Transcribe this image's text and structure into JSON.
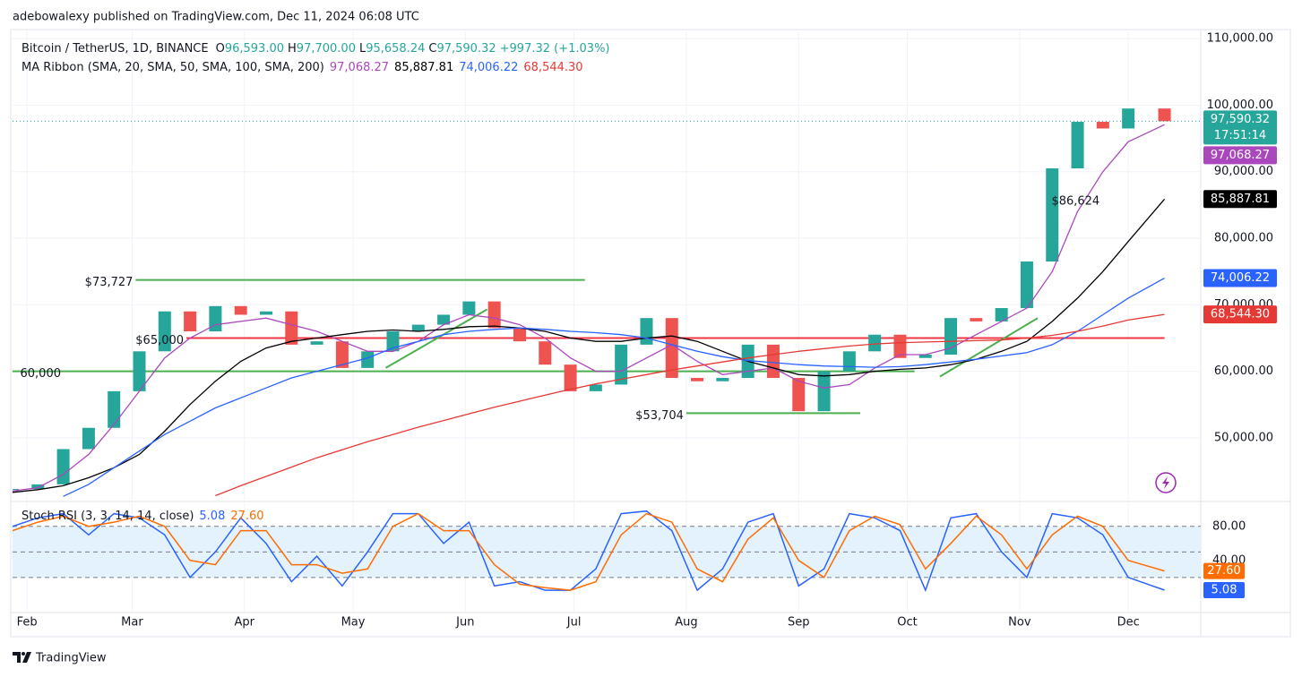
{
  "header": {
    "byline": "adebowalexy published on TradingView.com, Dec 11, 2024 06:08 UTC",
    "footer": "TradingView"
  },
  "chart_data": [
    {
      "type": "candlestick",
      "title": "Bitcoin / TetherUS, 1D, BINANCE",
      "ohlc": [
        {
          "key": "O",
          "value": 96593,
          "label": "96,593.00"
        },
        {
          "key": "H",
          "value": 97700,
          "label": "97,700.00"
        },
        {
          "key": "L",
          "value": 95658.24,
          "label": "95,658.24"
        },
        {
          "key": "C",
          "value": 97590.32,
          "label": "97,590.32"
        }
      ],
      "change": {
        "value": 997.32,
        "label": "+997.32 (+1.03%)"
      },
      "ribbon_title": "MA Ribbon (SMA, 20, SMA, 50, SMA, 100, SMA, 200)",
      "countdown": "17:51:14",
      "x": [
        "2024-01-28",
        "2024-02-04",
        "2024-02-11",
        "2024-02-18",
        "2024-02-25",
        "2024-03-03",
        "2024-03-10",
        "2024-03-17",
        "2024-03-24",
        "2024-03-31",
        "2024-04-07",
        "2024-04-14",
        "2024-04-21",
        "2024-04-28",
        "2024-05-05",
        "2024-05-12",
        "2024-05-19",
        "2024-05-26",
        "2024-06-02",
        "2024-06-09",
        "2024-06-16",
        "2024-06-23",
        "2024-06-30",
        "2024-07-07",
        "2024-07-14",
        "2024-07-21",
        "2024-07-28",
        "2024-08-04",
        "2024-08-11",
        "2024-08-18",
        "2024-08-25",
        "2024-09-01",
        "2024-09-08",
        "2024-09-15",
        "2024-09-22",
        "2024-09-29",
        "2024-10-06",
        "2024-10-13",
        "2024-10-20",
        "2024-10-27",
        "2024-11-03",
        "2024-11-10",
        "2024-11-17",
        "2024-11-24",
        "2024-12-01",
        "2024-12-11"
      ],
      "series": [
        {
          "style": "candles",
          "up_color": "#26a69a",
          "down_color": "#ef5350",
          "color": "#26a69a",
          "last": {
            "value": 97590.32,
            "label": "97,590.32"
          },
          "values": [
            42300,
            43000,
            48300,
            51500,
            57000,
            63000,
            69000,
            66000,
            69800,
            68500,
            69000,
            64000,
            64500,
            60500,
            63000,
            66000,
            67000,
            68500,
            70500,
            66500,
            64500,
            61000,
            57000,
            58000,
            64000,
            68000,
            59000,
            58500,
            59000,
            64000,
            59000,
            54000,
            60000,
            63000,
            65500,
            62000,
            62500,
            68000,
            67500,
            69500,
            76500,
            90500,
            97500,
            96500,
            99500,
            97590.32
          ]
        },
        {
          "style": "line",
          "color": "#ab47bc",
          "last": {
            "value": 97068.27,
            "label": "97,068.27"
          },
          "values": [
            42000,
            42500,
            44500,
            47500,
            52000,
            57000,
            62000,
            65000,
            67000,
            67500,
            68000,
            67000,
            66000,
            64500,
            63000,
            63000,
            64500,
            67000,
            68500,
            68000,
            67000,
            65000,
            62000,
            60000,
            60000,
            62000,
            64000,
            61500,
            59500,
            60000,
            60500,
            58500,
            57500,
            58000,
            60500,
            62500,
            62500,
            63500,
            65500,
            67500,
            69500,
            75000,
            84000,
            90000,
            94500,
            97068.27
          ]
        },
        {
          "style": "line",
          "color": "#000000",
          "last": {
            "value": 85887.81,
            "label": "85,887.81"
          },
          "values": [
            41800,
            42200,
            42800,
            44000,
            45500,
            47500,
            51000,
            55000,
            58500,
            61500,
            63500,
            64500,
            65000,
            65500,
            66000,
            66200,
            66000,
            66300,
            66700,
            66800,
            66500,
            66000,
            65000,
            64500,
            64500,
            65000,
            65300,
            64500,
            63000,
            61500,
            60500,
            59500,
            59300,
            59500,
            60000,
            60300,
            60500,
            61000,
            61800,
            63000,
            64500,
            67500,
            71000,
            75000,
            79500,
            85887.81
          ]
        },
        {
          "style": "line",
          "color": "#2962ff",
          "last": {
            "value": 74006.22,
            "label": "74,006.22"
          },
          "values": [
            null,
            null,
            41200,
            43000,
            45500,
            48000,
            50500,
            52500,
            54500,
            56000,
            57500,
            59000,
            60000,
            61000,
            62000,
            63500,
            64500,
            65500,
            66000,
            66300,
            66500,
            66300,
            66000,
            65800,
            65500,
            65000,
            64000,
            63000,
            62200,
            61600,
            61300,
            61000,
            60800,
            60700,
            60600,
            60700,
            61000,
            61400,
            61800,
            62300,
            62800,
            64000,
            66000,
            68500,
            71000,
            74006.22
          ]
        },
        {
          "style": "line",
          "color": "#e53935",
          "last": {
            "value": 68544.3,
            "label": "68,544.30"
          },
          "values": [
            null,
            null,
            null,
            null,
            null,
            null,
            null,
            null,
            41300,
            42800,
            44200,
            45600,
            47000,
            48200,
            49400,
            50500,
            51600,
            52600,
            53600,
            54600,
            55500,
            56400,
            57300,
            58100,
            58800,
            59500,
            60200,
            60800,
            61400,
            62000,
            62500,
            63000,
            63400,
            63800,
            64100,
            64300,
            64400,
            64500,
            64600,
            64700,
            65000,
            65400,
            66000,
            66800,
            67700,
            68544.3
          ]
        }
      ],
      "annotations": [
        {
          "label": "$73,727",
          "value": 73727,
          "color": "#4caf50",
          "x": [
            "2024-03-02",
            "2024-07-04"
          ]
        },
        {
          "label": "$65,000",
          "value": 65000,
          "color": "#f23645",
          "x": [
            "2024-03-16",
            "2024-12-11"
          ]
        },
        {
          "label": "60,000",
          "value": 60000,
          "color": "#4caf50",
          "x": [
            "2024-01-28",
            "2024-10-03"
          ]
        },
        {
          "label": "$53,704",
          "value": 53704,
          "color": "#4caf50",
          "x": [
            "2024-08-01",
            "2024-09-18"
          ]
        },
        {
          "label": "$86,624",
          "value": 86624,
          "color": "#000000",
          "x": [
            "2024-11-12"
          ]
        }
      ],
      "trendlines": [
        {
          "color": "#4caf50",
          "x": [
            "2024-05-10",
            "2024-06-07"
          ],
          "values": [
            60500,
            69300
          ]
        },
        {
          "color": "#4caf50",
          "x": [
            "2024-10-10",
            "2024-11-06"
          ],
          "values": [
            59200,
            68000
          ]
        }
      ],
      "xlim": [
        "2024-01-28",
        "2024-12-21"
      ],
      "xticks": [
        {
          "value": "2024-02-01",
          "label": "Feb"
        },
        {
          "value": "2024-03-01",
          "label": "Mar"
        },
        {
          "value": "2024-04-01",
          "label": "Apr"
        },
        {
          "value": "2024-05-01",
          "label": "May"
        },
        {
          "value": "2024-06-01",
          "label": "Jun"
        },
        {
          "value": "2024-07-01",
          "label": "Jul"
        },
        {
          "value": "2024-08-01",
          "label": "Aug"
        },
        {
          "value": "2024-09-01",
          "label": "Sep"
        },
        {
          "value": "2024-10-01",
          "label": "Oct"
        },
        {
          "value": "2024-11-01",
          "label": "Nov"
        },
        {
          "value": "2024-12-01",
          "label": "Dec"
        }
      ],
      "ylim": [
        41100,
        111100
      ],
      "yticks": [
        {
          "value": 50000,
          "label": "50,000.00"
        },
        {
          "value": 60000,
          "label": "60,000.00"
        },
        {
          "value": 70000,
          "label": "70,000.00"
        },
        {
          "value": 80000,
          "label": "80,000.00"
        },
        {
          "value": 90000,
          "label": "90,000.00"
        },
        {
          "value": 100000,
          "label": "100,000.00"
        },
        {
          "value": 110000,
          "label": "110,000.00"
        }
      ],
      "grid": true
    },
    {
      "type": "line",
      "title": "Stoch RSI (3, 3, 14, 14, close)",
      "series": [
        {
          "color": "#2962ff",
          "last": {
            "value": 5.08,
            "label": "5.08"
          },
          "values": [
            80,
            90,
            95,
            70,
            95,
            90,
            70,
            20,
            50,
            90,
            60,
            15,
            45,
            10,
            50,
            95,
            95,
            60,
            85,
            10,
            15,
            5,
            5,
            30,
            95,
            98,
            75,
            5,
            30,
            85,
            95,
            10,
            30,
            95,
            90,
            75,
            5,
            90,
            95,
            50,
            20,
            95,
            90,
            70,
            20,
            5.08
          ]
        },
        {
          "color": "#ff6d00",
          "last": {
            "value": 27.6,
            "label": "27.60"
          },
          "values": [
            75,
            85,
            92,
            80,
            85,
            92,
            80,
            40,
            35,
            75,
            75,
            35,
            35,
            25,
            30,
            80,
            95,
            75,
            75,
            35,
            12,
            8,
            5,
            15,
            70,
            95,
            85,
            30,
            15,
            65,
            90,
            40,
            20,
            75,
            92,
            82,
            30,
            60,
            92,
            70,
            30,
            70,
            92,
            80,
            40,
            27.6
          ]
        }
      ],
      "bands": [
        20,
        50,
        80
      ],
      "band_color": "#e3f2fd",
      "ylim": [
        -17,
        104
      ],
      "yticks": [
        {
          "value": 40,
          "label": "40.00"
        },
        {
          "value": 80,
          "label": "80.00"
        }
      ]
    }
  ]
}
